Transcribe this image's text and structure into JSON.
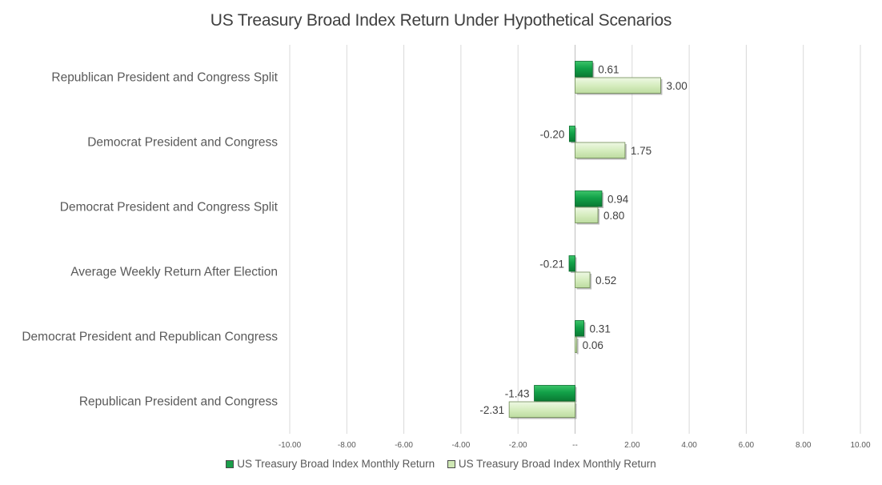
{
  "chart_data": {
    "type": "bar",
    "orientation": "horizontal",
    "title": "US Treasury Broad Index Return Under Hypothetical Scenarios",
    "categories": [
      "Republican President and Congress Split",
      "Democrat President and Congress",
      "Democrat President and Congress Split",
      "Average Weekly Return After Election",
      "Democrat President and Republican Congress",
      "Republican President and Congress"
    ],
    "series": [
      {
        "name": "US Treasury Broad Index Monthly Return",
        "color": "#1a9e4a",
        "values": [
          0.61,
          -0.2,
          0.94,
          -0.21,
          0.31,
          -1.43
        ],
        "labels": [
          "0.61",
          "-0.20",
          "0.94",
          "-0.21",
          "0.31",
          "-1.43"
        ]
      },
      {
        "name": "US Treasury Broad Index Monthly Return",
        "color": "#cfe8b5",
        "values": [
          3.0,
          1.75,
          0.8,
          0.52,
          0.06,
          -2.31
        ],
        "labels": [
          "3.00",
          "1.75",
          "0.80",
          "0.52",
          "0.06",
          "-2.31"
        ]
      }
    ],
    "xlim": [
      -10,
      10
    ],
    "xticks": [
      -10,
      -8,
      -6,
      -4,
      -2,
      0,
      2,
      4,
      6,
      8,
      10
    ],
    "xtick_labels": [
      "-10.00",
      "-8.00",
      "-6.00",
      "-4.00",
      "-2.00",
      "--",
      "2.00",
      "4.00",
      "6.00",
      "8.00",
      "10.00"
    ],
    "grid": "vertical",
    "legend_position": "bottom"
  }
}
